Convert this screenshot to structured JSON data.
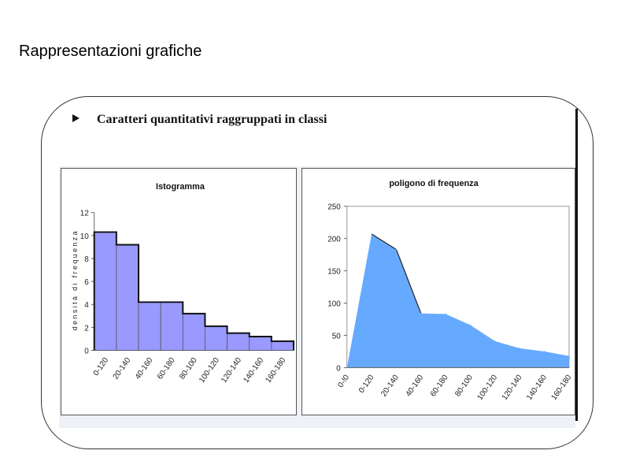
{
  "slide": {
    "title": "Rappresentazioni grafiche",
    "subtitle": "Caratteri quantitativi raggruppati in classi"
  },
  "colors": {
    "histogram_bar": "#9999ff",
    "polygon_fill": "#66aaff",
    "outline": "#111111"
  },
  "chart_data": [
    {
      "type": "bar",
      "title": "Istogramma",
      "xlabel": "",
      "ylabel": "densità di frequenza",
      "categories": [
        "0-120",
        "20-140",
        "40-160",
        "60-180",
        "80-100",
        "100-120",
        "120-140",
        "140-160",
        "160-180"
      ],
      "values": [
        10.3,
        9.2,
        4.2,
        4.2,
        3.2,
        2.1,
        1.5,
        1.2,
        0.8
      ],
      "ylim": [
        0,
        12
      ],
      "yticks": [
        0,
        2,
        4,
        6,
        8,
        10,
        12
      ],
      "grid": false,
      "legend": "none"
    },
    {
      "type": "area",
      "title": "poligono di frequenza",
      "xlabel": "",
      "ylabel": "",
      "categories": [
        "0-!0",
        "0-120",
        "20-140",
        "40-160",
        "60-180",
        "80-100",
        "100-120",
        "120-140",
        "140-160",
        "160-180"
      ],
      "values": [
        0,
        207,
        183,
        84,
        83,
        66,
        41,
        30,
        25,
        18
      ],
      "ylim": [
        0,
        250
      ],
      "yticks": [
        0,
        50,
        100,
        150,
        200,
        250
      ],
      "grid": false,
      "legend": "none"
    }
  ]
}
